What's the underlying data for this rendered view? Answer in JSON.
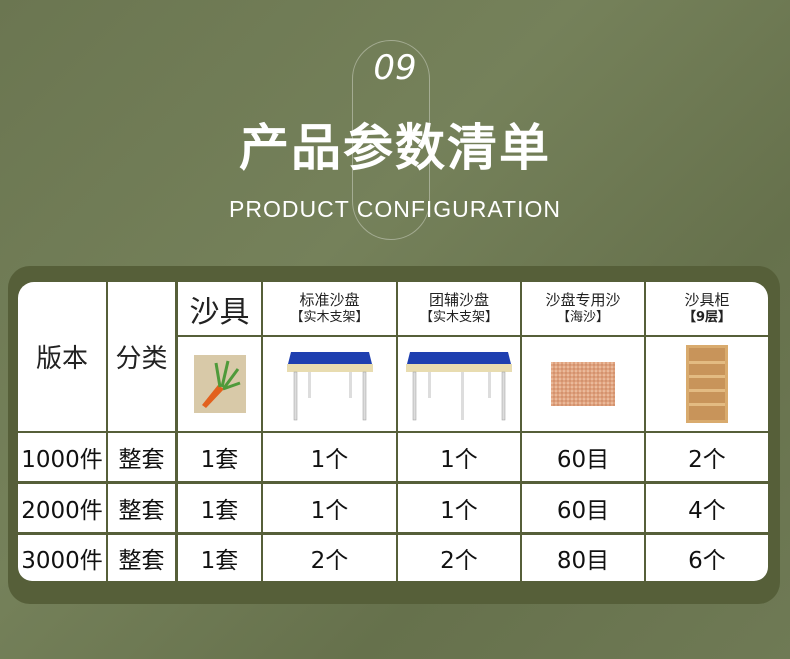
{
  "header": {
    "number": "09",
    "title": "产品参数清单",
    "subtitle": "PRODUCT CONFIGURATION"
  },
  "table": {
    "version_label": "版本",
    "category_label": "分类",
    "columns": [
      {
        "name": "沙具",
        "note": "",
        "image": "sand-toy-carrot"
      },
      {
        "name": "标准沙盘",
        "note": "【实木支架】",
        "image": "sand-table"
      },
      {
        "name": "团辅沙盘",
        "note": "【实木支架】",
        "image": "sand-table"
      },
      {
        "name": "沙盘专用沙",
        "note": "【海沙】",
        "image": "sea-sand"
      },
      {
        "name": "沙具柜",
        "note": "【9层】",
        "image": "wooden-shelf"
      }
    ],
    "rows": [
      {
        "version": "1000件",
        "category": "整套",
        "values": [
          "1套",
          "1个",
          "1个",
          "60目",
          "2个"
        ]
      },
      {
        "version": "2000件",
        "category": "整套",
        "values": [
          "1套",
          "1个",
          "1个",
          "60目",
          "4个"
        ]
      },
      {
        "version": "3000件",
        "category": "整套",
        "values": [
          "1套",
          "2个",
          "2个",
          "80目",
          "6个"
        ]
      }
    ]
  },
  "colors": {
    "background": "#6e7952",
    "panel": "#565f39",
    "table_blue": "#1e3fb0"
  }
}
